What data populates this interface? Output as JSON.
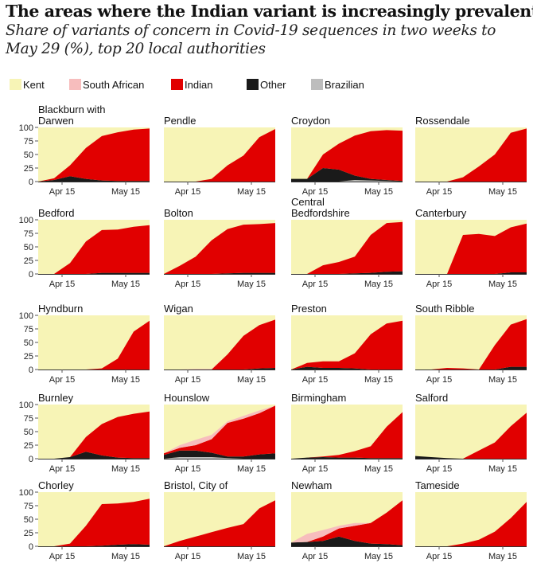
{
  "chart_data": {
    "type": "area",
    "stacked": true,
    "title": "The areas where the Indian variant is increasingly prevalent",
    "subtitle": "Share of variants of concern in Covid-19 sequences in two weeks to May 29 (%), top 20 local authorities",
    "x_ticks": [
      "Apr 15",
      "May 15"
    ],
    "x_tick_index": [
      1.5,
      5.5
    ],
    "y_ticks": [
      "0",
      "25",
      "50",
      "75",
      "100"
    ],
    "ylim": [
      0,
      100
    ],
    "x_points": 8,
    "legend": [
      {
        "name": "Kent",
        "color": "#f7f4b6"
      },
      {
        "name": "South African",
        "color": "#f7bdbd"
      },
      {
        "name": "Indian",
        "color": "#e10000"
      },
      {
        "name": "Other",
        "color": "#1a1a1a"
      },
      {
        "name": "Brazilian",
        "color": "#bdbdbd"
      }
    ],
    "stack_order": [
      "Brazilian",
      "Other",
      "Indian",
      "South African",
      "Kent"
    ],
    "panels": [
      {
        "name": "Blackburn with Darwen",
        "series": {
          "Brazilian": [
            0,
            0,
            0,
            0,
            0,
            0,
            0,
            0
          ],
          "Other": [
            0,
            3,
            10,
            5,
            2,
            1,
            1,
            1
          ],
          "Indian": [
            0,
            3,
            20,
            57,
            82,
            90,
            95,
            97
          ],
          "South African": [
            0,
            0,
            0,
            0,
            0,
            0,
            0,
            0
          ]
        }
      },
      {
        "name": "Pendle",
        "series": {
          "Brazilian": [
            0,
            0,
            0,
            0,
            0,
            0,
            0,
            0
          ],
          "Other": [
            0,
            0,
            0,
            0,
            0,
            0,
            0,
            0
          ],
          "Indian": [
            0,
            0,
            0,
            5,
            30,
            48,
            82,
            97
          ],
          "South African": [
            0,
            0,
            0,
            0,
            0,
            0,
            0,
            0
          ]
        }
      },
      {
        "name": "Croydon",
        "series": {
          "Brazilian": [
            0,
            0,
            0,
            0,
            3,
            2,
            1,
            0
          ],
          "Other": [
            5,
            5,
            25,
            22,
            8,
            3,
            2,
            1
          ],
          "Indian": [
            0,
            0,
            25,
            48,
            74,
            88,
            92,
            93
          ],
          "South African": [
            0,
            0,
            0,
            0,
            0,
            0,
            0,
            0
          ]
        }
      },
      {
        "name": "Rossendale",
        "series": {
          "Brazilian": [
            0,
            0,
            0,
            0,
            0,
            0,
            0,
            0
          ],
          "Other": [
            0,
            0,
            0,
            0,
            0,
            0,
            0,
            0
          ],
          "Indian": [
            0,
            0,
            0,
            8,
            28,
            50,
            90,
            98
          ],
          "South African": [
            0,
            0,
            0,
            0,
            0,
            0,
            0,
            0
          ]
        }
      },
      {
        "name": "Bedford",
        "series": {
          "Brazilian": [
            0,
            0,
            0,
            0,
            0,
            0,
            0,
            0
          ],
          "Other": [
            0,
            0,
            0,
            0,
            2,
            2,
            2,
            2
          ],
          "Indian": [
            0,
            0,
            20,
            60,
            79,
            80,
            85,
            88
          ],
          "South African": [
            0,
            0,
            0,
            0,
            0,
            0,
            0,
            0
          ]
        }
      },
      {
        "name": "Bolton",
        "series": {
          "Brazilian": [
            0,
            0,
            0,
            0,
            0,
            0,
            0,
            0
          ],
          "Other": [
            0,
            0,
            0,
            0,
            1,
            2,
            2,
            2
          ],
          "Indian": [
            0,
            15,
            32,
            62,
            82,
            89,
            90,
            92
          ],
          "South African": [
            0,
            0,
            0,
            0,
            0,
            0,
            0,
            0
          ]
        }
      },
      {
        "name": "Central Bedfordshire",
        "series": {
          "Brazilian": [
            0,
            0,
            0,
            0,
            0,
            0,
            0,
            0
          ],
          "Other": [
            0,
            0,
            0,
            0,
            1,
            2,
            4,
            5
          ],
          "Indian": [
            0,
            0,
            16,
            22,
            31,
            70,
            90,
            91
          ],
          "South African": [
            0,
            0,
            0,
            0,
            0,
            0,
            0,
            0
          ]
        }
      },
      {
        "name": "Canterbury",
        "series": {
          "Brazilian": [
            0,
            0,
            0,
            0,
            0,
            0,
            0,
            0
          ],
          "Other": [
            0,
            0,
            0,
            0,
            0,
            0,
            3,
            3
          ],
          "Indian": [
            0,
            0,
            0,
            72,
            74,
            70,
            83,
            90
          ],
          "South African": [
            0,
            0,
            0,
            0,
            0,
            0,
            0,
            0
          ]
        }
      },
      {
        "name": "Hyndburn",
        "series": {
          "Brazilian": [
            0,
            0,
            0,
            0,
            0,
            0,
            0,
            0
          ],
          "Other": [
            0,
            0,
            0,
            0,
            0,
            0,
            0,
            0
          ],
          "Indian": [
            0,
            0,
            0,
            0,
            2,
            20,
            70,
            90
          ],
          "South African": [
            0,
            0,
            0,
            0,
            0,
            0,
            0,
            0
          ]
        }
      },
      {
        "name": "Wigan",
        "series": {
          "Brazilian": [
            0,
            0,
            0,
            0,
            0,
            0,
            0,
            0
          ],
          "Other": [
            0,
            0,
            0,
            0,
            0,
            0,
            2,
            3
          ],
          "Indian": [
            0,
            0,
            0,
            0,
            28,
            62,
            80,
            89
          ],
          "South African": [
            0,
            0,
            1,
            1,
            0,
            0,
            0,
            0
          ]
        }
      },
      {
        "name": "Preston",
        "series": {
          "Brazilian": [
            0,
            0,
            0,
            0,
            0,
            0,
            0,
            0
          ],
          "Other": [
            0,
            5,
            3,
            3,
            2,
            0,
            0,
            0
          ],
          "Indian": [
            0,
            7,
            12,
            12,
            28,
            65,
            85,
            90
          ],
          "South African": [
            0,
            0,
            0,
            0,
            0,
            0,
            0,
            0
          ]
        }
      },
      {
        "name": "South Ribble",
        "series": {
          "Brazilian": [
            0,
            0,
            0,
            0,
            0,
            0,
            0,
            0
          ],
          "Other": [
            0,
            0,
            0,
            0,
            0,
            0,
            5,
            5
          ],
          "Indian": [
            0,
            0,
            3,
            2,
            0,
            45,
            78,
            88
          ],
          "South African": [
            0,
            0,
            0,
            0,
            0,
            0,
            0,
            0
          ]
        }
      },
      {
        "name": "Burnley",
        "series": {
          "Brazilian": [
            0,
            0,
            0,
            0,
            0,
            0,
            0,
            0
          ],
          "Other": [
            0,
            0,
            3,
            13,
            6,
            2,
            1,
            1
          ],
          "Indian": [
            0,
            0,
            0,
            27,
            58,
            75,
            82,
            86
          ],
          "South African": [
            0,
            0,
            0,
            0,
            0,
            0,
            0,
            0
          ]
        }
      },
      {
        "name": "Hounslow",
        "series": {
          "Brazilian": [
            0,
            3,
            3,
            3,
            1,
            0,
            0,
            0
          ],
          "Other": [
            7,
            12,
            12,
            8,
            3,
            4,
            8,
            10
          ],
          "Indian": [
            3,
            5,
            10,
            25,
            62,
            70,
            76,
            88
          ],
          "South African": [
            0,
            5,
            10,
            8,
            3,
            5,
            5,
            0
          ]
        }
      },
      {
        "name": "Birmingham",
        "series": {
          "Brazilian": [
            0,
            0,
            0,
            0,
            0,
            0,
            0,
            0
          ],
          "Other": [
            0,
            2,
            3,
            2,
            2,
            1,
            1,
            1
          ],
          "Indian": [
            0,
            0,
            1,
            5,
            12,
            22,
            58,
            85
          ],
          "South African": [
            0,
            0,
            0,
            0,
            0,
            0,
            0,
            0
          ]
        }
      },
      {
        "name": "Salford",
        "series": {
          "Brazilian": [
            0,
            0,
            0,
            0,
            0,
            0,
            0,
            0
          ],
          "Other": [
            5,
            3,
            1,
            0,
            0,
            0,
            0,
            0
          ],
          "Indian": [
            0,
            0,
            0,
            0,
            15,
            30,
            60,
            85
          ],
          "South African": [
            0,
            0,
            0,
            0,
            0,
            0,
            0,
            0
          ]
        }
      },
      {
        "name": "Chorley",
        "series": {
          "Brazilian": [
            0,
            0,
            0,
            0,
            0,
            0,
            0,
            0
          ],
          "Other": [
            0,
            0,
            0,
            0,
            1,
            3,
            4,
            3
          ],
          "Indian": [
            0,
            0,
            5,
            38,
            77,
            76,
            78,
            85
          ],
          "South African": [
            0,
            0,
            0,
            0,
            0,
            0,
            0,
            0
          ]
        }
      },
      {
        "name": "Bristol, City of",
        "series": {
          "Brazilian": [
            0,
            0,
            0,
            0,
            0,
            0,
            0,
            0
          ],
          "Other": [
            0,
            0,
            0,
            0,
            0,
            0,
            0,
            0
          ],
          "Indian": [
            0,
            10,
            18,
            26,
            34,
            41,
            70,
            85
          ],
          "South African": [
            0,
            0,
            0,
            0,
            0,
            0,
            0,
            0
          ]
        }
      },
      {
        "name": "Newham",
        "series": {
          "Brazilian": [
            0,
            0,
            0,
            0,
            0,
            0,
            0,
            0
          ],
          "Other": [
            7,
            8,
            10,
            18,
            10,
            5,
            4,
            2
          ],
          "Indian": [
            0,
            0,
            8,
            15,
            28,
            38,
            58,
            83
          ],
          "South African": [
            0,
            15,
            12,
            5,
            5,
            0,
            0,
            0
          ]
        }
      },
      {
        "name": "Tameside",
        "series": {
          "Brazilian": [
            0,
            0,
            0,
            0,
            0,
            0,
            0,
            0
          ],
          "Other": [
            0,
            0,
            0,
            0,
            0,
            0,
            0,
            0
          ],
          "Indian": [
            0,
            0,
            0,
            5,
            12,
            27,
            52,
            82
          ],
          "South African": [
            0,
            0,
            0,
            0,
            0,
            0,
            0,
            0
          ]
        }
      }
    ]
  }
}
